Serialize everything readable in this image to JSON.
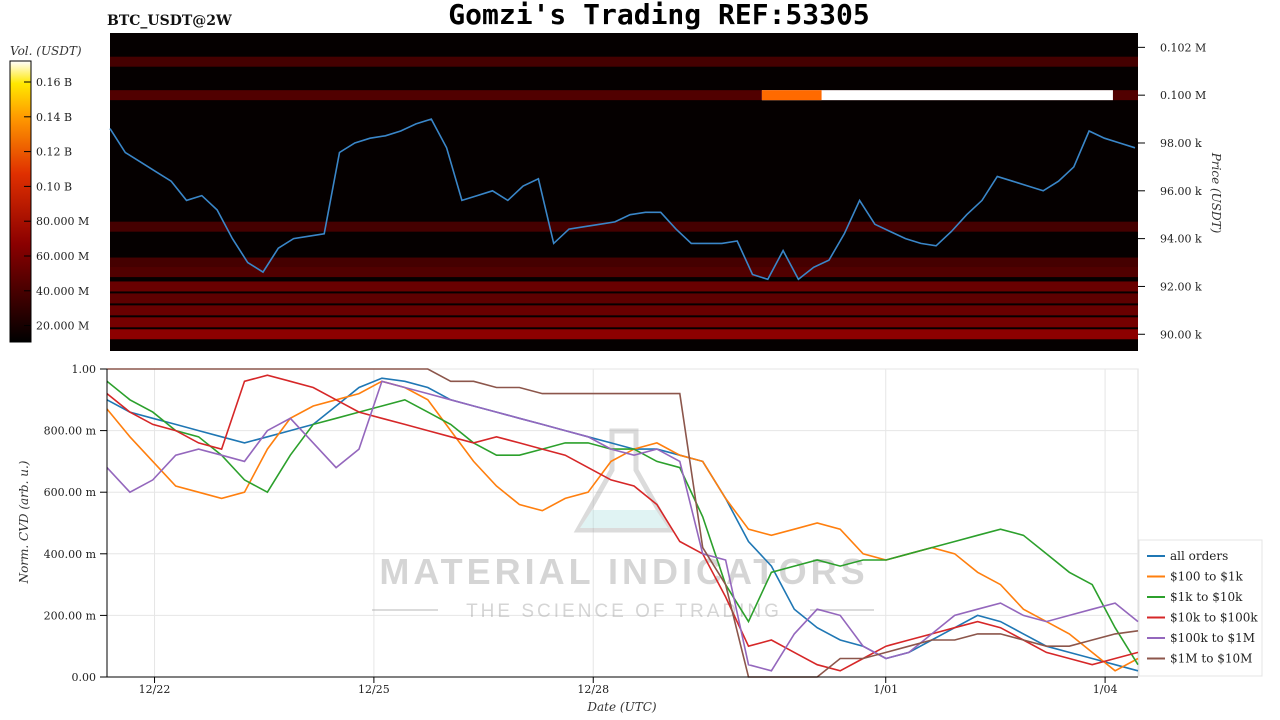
{
  "title": "Gomzi's Trading REF:53305",
  "pair_label": "BTC_USDT@2W",
  "colorbar": {
    "label": "Vol. (USDT)",
    "ticks": [
      "0.16 B",
      "0.14 B",
      "0.12 B",
      "0.10 B",
      "80.000 M",
      "60.000 M",
      "40.000 M",
      "20.000 M"
    ]
  },
  "watermark": {
    "line1": "MATERIAL INDICATORS",
    "line2": "THE SCIENCE OF TRADING"
  },
  "chart_data": [
    {
      "type": "heatmap",
      "ylabel": "Price (USDT)",
      "ylim": [
        89300,
        102600
      ],
      "y_ticks": [
        "90.00 k",
        "92.00 k",
        "94.00 k",
        "96.00 k",
        "98.00 k",
        "0.100 M",
        "0.102 M"
      ],
      "y_tick_values": [
        90000,
        92000,
        94000,
        96000,
        98000,
        100000,
        102000
      ],
      "bands": [
        {
          "price": 90000,
          "intensity": 0.45
        },
        {
          "price": 90500,
          "intensity": 0.35
        },
        {
          "price": 91000,
          "intensity": 0.3
        },
        {
          "price": 91500,
          "intensity": 0.25
        },
        {
          "price": 92000,
          "intensity": 0.3
        },
        {
          "price": 92600,
          "intensity": 0.2
        },
        {
          "price": 93000,
          "intensity": 0.15
        },
        {
          "price": 94500,
          "intensity": 0.15
        },
        {
          "price": 100000,
          "intensity": 0.2
        },
        {
          "price": 101400,
          "intensity": 0.15
        }
      ],
      "big_wall": {
        "price": 100000,
        "from_day": 15.6,
        "to_day": 24.0
      },
      "price_series": {
        "x_start_day": 0.0,
        "x_end_day": 24.6,
        "values": [
          98600,
          97600,
          97200,
          96800,
          96400,
          95600,
          95800,
          95200,
          94000,
          93000,
          92600,
          93600,
          94000,
          94100,
          94200,
          97600,
          98000,
          98200,
          98300,
          98500,
          98800,
          99000,
          97800,
          95600,
          95800,
          96000,
          95600,
          96200,
          96500,
          93800,
          94400,
          94500,
          94600,
          94700,
          95000,
          95100,
          95100,
          94400,
          93800,
          93800,
          93800,
          93900,
          92500,
          92300,
          93500,
          92300,
          92800,
          93100,
          94200,
          95600,
          94600,
          94300,
          94000,
          93800,
          93700,
          94300,
          95000,
          95600,
          96600,
          96400,
          96200,
          96000,
          96400,
          97000,
          98500,
          98200,
          98000,
          97800
        ]
      }
    },
    {
      "type": "line",
      "xlabel": "Date (UTC)",
      "ylabel": "Norm. CVD (arb. u.)",
      "ylim": [
        0,
        1
      ],
      "y_ticks": [
        "0.00",
        "200.00 m",
        "400.00 m",
        "600.00 m",
        "800.00 m",
        "1.00"
      ],
      "y_tick_values": [
        0,
        0.2,
        0.4,
        0.6,
        0.8,
        1.0
      ],
      "x_ticks": [
        "12/22",
        "12/25",
        "12/28",
        "1/01",
        "1/04"
      ],
      "x_tick_days": [
        1,
        4,
        7,
        11,
        14
      ],
      "xlim_days": [
        0.35,
        14.45
      ],
      "series": [
        {
          "name": "all orders",
          "color": "#1f77b4",
          "values": [
            0.9,
            0.86,
            0.84,
            0.82,
            0.8,
            0.78,
            0.76,
            0.78,
            0.8,
            0.82,
            0.88,
            0.94,
            0.97,
            0.96,
            0.94,
            0.9,
            0.88,
            0.86,
            0.84,
            0.82,
            0.8,
            0.78,
            0.76,
            0.74,
            0.74,
            0.72,
            0.7,
            0.58,
            0.44,
            0.36,
            0.22,
            0.16,
            0.12,
            0.1,
            0.06,
            0.08,
            0.12,
            0.16,
            0.2,
            0.18,
            0.14,
            0.1,
            0.08,
            0.06,
            0.04,
            0.02
          ]
        },
        {
          "name": "$100 to $1k",
          "color": "#ff7f0e",
          "values": [
            0.87,
            0.78,
            0.7,
            0.62,
            0.6,
            0.58,
            0.6,
            0.74,
            0.84,
            0.88,
            0.9,
            0.92,
            0.96,
            0.94,
            0.9,
            0.8,
            0.7,
            0.62,
            0.56,
            0.54,
            0.58,
            0.6,
            0.7,
            0.74,
            0.76,
            0.72,
            0.7,
            0.58,
            0.48,
            0.46,
            0.48,
            0.5,
            0.48,
            0.4,
            0.38,
            0.4,
            0.42,
            0.4,
            0.34,
            0.3,
            0.22,
            0.18,
            0.14,
            0.08,
            0.02,
            0.06
          ]
        },
        {
          "name": "$1k to $10k",
          "color": "#2ca02c",
          "values": [
            0.96,
            0.9,
            0.86,
            0.8,
            0.78,
            0.72,
            0.64,
            0.6,
            0.72,
            0.82,
            0.84,
            0.86,
            0.88,
            0.9,
            0.86,
            0.82,
            0.76,
            0.72,
            0.72,
            0.74,
            0.76,
            0.76,
            0.74,
            0.74,
            0.7,
            0.68,
            0.52,
            0.3,
            0.18,
            0.34,
            0.36,
            0.38,
            0.36,
            0.38,
            0.38,
            0.4,
            0.42,
            0.44,
            0.46,
            0.48,
            0.46,
            0.4,
            0.34,
            0.3,
            0.16,
            0.04
          ]
        },
        {
          "name": "$10k to $100k",
          "color": "#d62728",
          "values": [
            0.92,
            0.86,
            0.82,
            0.8,
            0.76,
            0.74,
            0.96,
            0.98,
            0.96,
            0.94,
            0.9,
            0.86,
            0.84,
            0.82,
            0.8,
            0.78,
            0.76,
            0.78,
            0.76,
            0.74,
            0.72,
            0.68,
            0.64,
            0.62,
            0.56,
            0.44,
            0.4,
            0.26,
            0.1,
            0.12,
            0.08,
            0.04,
            0.02,
            0.06,
            0.1,
            0.12,
            0.14,
            0.16,
            0.18,
            0.16,
            0.12,
            0.08,
            0.06,
            0.04,
            0.06,
            0.08
          ]
        },
        {
          "name": "$100k to $1M",
          "color": "#9467bd",
          "values": [
            0.68,
            0.6,
            0.64,
            0.72,
            0.74,
            0.72,
            0.7,
            0.8,
            0.84,
            0.76,
            0.68,
            0.74,
            0.96,
            0.94,
            0.92,
            0.9,
            0.88,
            0.86,
            0.84,
            0.82,
            0.8,
            0.78,
            0.74,
            0.72,
            0.74,
            0.7,
            0.4,
            0.38,
            0.04,
            0.02,
            0.14,
            0.22,
            0.2,
            0.1,
            0.06,
            0.08,
            0.14,
            0.2,
            0.22,
            0.24,
            0.2,
            0.18,
            0.2,
            0.22,
            0.24,
            0.18
          ]
        },
        {
          "name": "$1M to $10M",
          "color": "#8c564b",
          "values": [
            1,
            1,
            1,
            1,
            1,
            1,
            1,
            1,
            1,
            1,
            1,
            1,
            1,
            1,
            1,
            0.96,
            0.96,
            0.94,
            0.94,
            0.92,
            0.92,
            0.92,
            0.92,
            0.92,
            0.92,
            0.92,
            0.42,
            0.3,
            0,
            0,
            0,
            0,
            0.06,
            0.06,
            0.08,
            0.1,
            0.12,
            0.12,
            0.14,
            0.14,
            0.12,
            0.1,
            0.1,
            0.12,
            0.14,
            0.15
          ]
        }
      ]
    }
  ]
}
